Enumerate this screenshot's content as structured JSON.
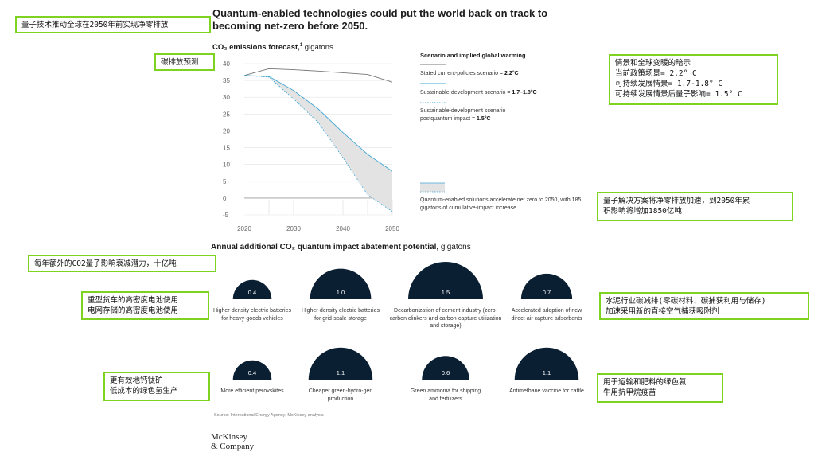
{
  "title": "Quantum-enabled technologies could put the world back on track to becoming net-zero before 2050.",
  "forecast": {
    "heading_main": "CO₂ emissions forecast,",
    "heading_sup": "1",
    "heading_unit": " gigatons"
  },
  "legend": {
    "heading": "Scenario and implied global warming",
    "items": [
      {
        "text": "Stated current-policies scenario = ",
        "bold": "2.2°C"
      },
      {
        "text": "Sustainable-development scenario = ",
        "bold": "1.7–1.8°C"
      },
      {
        "text": "Sustainable-development scenario postquantum impact = ",
        "bold": "1.5°C"
      }
    ],
    "area_text": "Quantum-enabled solutions accelerate net zero to 2050, with 185 gigatons of cumulative-impact increase"
  },
  "abatement": {
    "heading_main": "Annual additional CO₂ quantum impact abatement potential,",
    "heading_unit": " gigatons",
    "items": [
      {
        "value": "0.4",
        "label": "Higher-density electric batteries for heavy-goods vehicles"
      },
      {
        "value": "1.0",
        "label": "Higher-density electric batteries for grid-scale storage"
      },
      {
        "value": "1.5",
        "label": "Decarbonization of cement industry (zero-carbon clinkers and carbon-capture utilization and storage)"
      },
      {
        "value": "0.7",
        "label": "Accelerated adoption of new direct-air capture adsorbents"
      },
      {
        "value": "0.4",
        "label": "More efficient perovskites"
      },
      {
        "value": "1.1",
        "label": "Cheaper green-hydro-gen production"
      },
      {
        "value": "0.6",
        "label": "Green ammonia for shipping and fertilizers"
      },
      {
        "value": "1.1",
        "label": "Antimethane vaccine for cattle"
      }
    ]
  },
  "source": "Source: International Energy Agency; McKinsey analysis",
  "logo": {
    "line1": "McKinsey",
    "line2": "& Company"
  },
  "annotations": {
    "title_note": "量子技术推动全球在2050年前实现净零排放",
    "forecast_note": "碳排放预测",
    "scenario_note": "情景和全球变暖的暗示\n当前政策场景= 2.2° C\n可持续发展情景= 1.7-1.8° C\n可持续发展情景后量子影响= 1.5° C",
    "area_note": "量子解决方案将净零排放加速，到2050年累\n积影响将增加1850亿吨",
    "abatement_note": "每年额外的CO2量子影响衰减潜力，十亿吨",
    "batteries_note": "重型货车的高密度电池使用\n电网存储的高密度电池使用",
    "cement_note": "水泥行业碳减排(零碳材料、碳捕获利用与储存)\n加速采用新的直接空气捕获吸附剂",
    "perovskite_note": "更有效地钙钛矿\n低成本的绿色氢生产",
    "ammonia_note": "用于运输和肥料的绿色氨\n牛用抗甲烷疫苗"
  },
  "colors": {
    "stated": "#777777",
    "sustainable": "#3fa7d6",
    "postquantum": "#3fa7d6",
    "area": "#e3e3e3",
    "bubble": "#0b1f33",
    "note_border": "#7ed321"
  },
  "chart_data": [
    {
      "type": "line",
      "title": "CO₂ emissions forecast, gigatons",
      "ylabel": "gigatons",
      "x": [
        2020,
        2025,
        2030,
        2035,
        2040,
        2045,
        2050
      ],
      "xticks": [
        2020,
        2030,
        2040,
        2050
      ],
      "yticks": [
        -5,
        0,
        5,
        10,
        15,
        20,
        25,
        30,
        35,
        40
      ],
      "xlim": [
        2020,
        2050
      ],
      "ylim": [
        -5,
        40
      ],
      "grid": "horizontal",
      "series": [
        {
          "name": "Stated current-policies scenario",
          "style": "solid",
          "values": [
            36.5,
            38.5,
            38.2,
            37.8,
            37.3,
            36.8,
            34.5
          ]
        },
        {
          "name": "Sustainable-development scenario",
          "style": "solid",
          "values": [
            36.5,
            36.2,
            32.0,
            26.5,
            19.5,
            13.0,
            8.0
          ]
        },
        {
          "name": "Sustainable-development scenario postquantum impact",
          "style": "dotted",
          "values": [
            36.5,
            36.0,
            29.5,
            22.5,
            12.0,
            1.0,
            -4.0
          ]
        }
      ],
      "shaded_between": [
        "Sustainable-development scenario",
        "Sustainable-development scenario postquantum impact"
      ]
    },
    {
      "type": "bar",
      "title": "Annual additional CO₂ quantum impact abatement potential, gigatons",
      "categories": [
        "Higher-density electric batteries for heavy-goods vehicles",
        "Higher-density electric batteries for grid-scale storage",
        "Decarbonization of cement industry (zero-carbon clinkers and carbon-capture utilization and storage)",
        "Accelerated adoption of new direct-air capture adsorbents",
        "More efficient perovskites",
        "Cheaper green-hydro-gen production",
        "Green ammonia for shipping and fertilizers",
        "Antimethane vaccine for cattle"
      ],
      "values": [
        0.4,
        1.0,
        1.5,
        0.7,
        0.4,
        1.1,
        0.6,
        1.1
      ]
    }
  ]
}
